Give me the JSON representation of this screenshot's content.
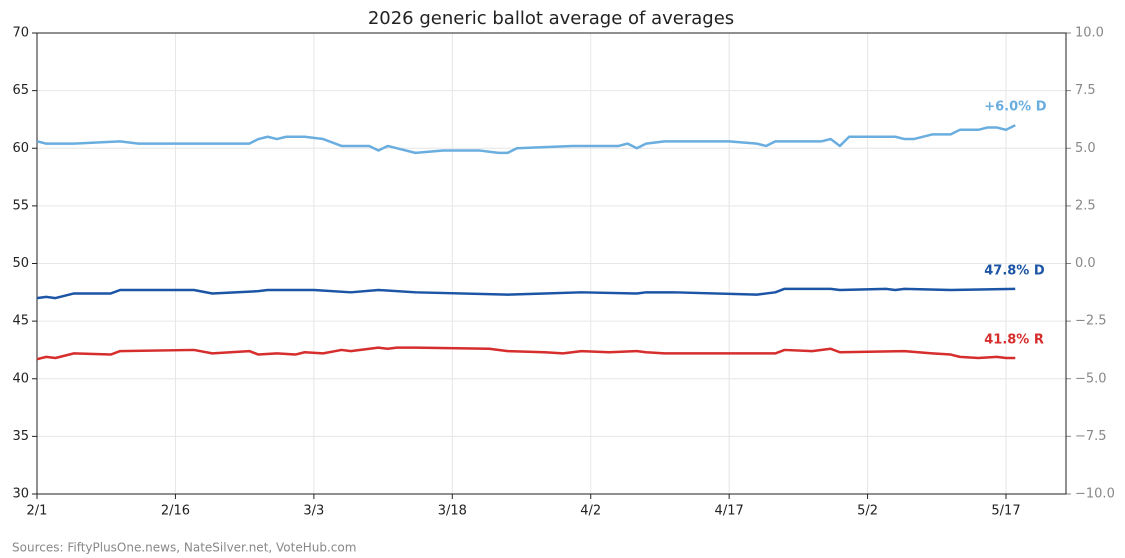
{
  "chart_data": {
    "type": "line",
    "title": "2026 generic ballot average of averages",
    "source": "Sources: FiftyPlusOne.news, NateSilver.net, VoteHub.com",
    "grid": true,
    "xlim": [
      0,
      111.5
    ],
    "xticks": [
      {
        "value": 0,
        "label": "2/1"
      },
      {
        "value": 15,
        "label": "2/16"
      },
      {
        "value": 30,
        "label": "3/3"
      },
      {
        "value": 45,
        "label": "3/18"
      },
      {
        "value": 60,
        "label": "4/2"
      },
      {
        "value": 75,
        "label": "4/17"
      },
      {
        "value": 90,
        "label": "5/2"
      },
      {
        "value": 105,
        "label": "5/17"
      }
    ],
    "ylim": [
      30,
      70
    ],
    "yticks": [
      30,
      35,
      40,
      45,
      50,
      55,
      60,
      65,
      70
    ],
    "y2lim": [
      -10,
      10
    ],
    "y2ticks": [
      {
        "value": -10,
        "label": "−10.0"
      },
      {
        "value": -7.5,
        "label": "−7.5"
      },
      {
        "value": -5,
        "label": "−5.0"
      },
      {
        "value": -2.5,
        "label": "−2.5"
      },
      {
        "value": 0,
        "label": "0.0"
      },
      {
        "value": 2.5,
        "label": "2.5"
      },
      {
        "value": 5,
        "label": "5.0"
      },
      {
        "value": 7.5,
        "label": "7.5"
      },
      {
        "value": 10,
        "label": "10.0"
      }
    ],
    "series": [
      {
        "color": "#6aaee0",
        "axis": "y2",
        "label": "+6.0% D",
        "x": [
          0,
          1,
          4,
          9,
          11,
          23,
          24,
          25,
          26,
          27,
          29,
          31,
          33,
          36,
          37,
          38,
          41,
          44,
          48,
          50,
          51,
          52,
          58,
          63,
          64,
          65,
          66,
          68,
          75,
          78,
          79,
          80,
          85,
          86,
          87,
          88,
          93,
          94,
          95,
          97,
          99,
          100,
          102,
          103,
          104,
          105,
          106
        ],
        "values": [
          5.3,
          5.2,
          5.2,
          5.3,
          5.2,
          5.2,
          5.4,
          5.5,
          5.4,
          5.5,
          5.5,
          5.4,
          5.1,
          5.1,
          4.9,
          5.1,
          4.8,
          4.9,
          4.9,
          4.8,
          4.8,
          5.0,
          5.1,
          5.1,
          5.2,
          5.0,
          5.2,
          5.3,
          5.3,
          5.2,
          5.1,
          5.3,
          5.3,
          5.4,
          5.1,
          5.5,
          5.5,
          5.4,
          5.4,
          5.6,
          5.6,
          5.8,
          5.8,
          5.9,
          5.9,
          5.8,
          6.0
        ]
      },
      {
        "color": "#1c55a5",
        "label": "47.8% D",
        "x": [
          0,
          1,
          2,
          4,
          8,
          9,
          17,
          19,
          24,
          25,
          30,
          34,
          37,
          41,
          51,
          55,
          59,
          65,
          66,
          69,
          78,
          80,
          81,
          86,
          87,
          92,
          93,
          94,
          99,
          106
        ],
        "values": [
          47.0,
          47.1,
          47.0,
          47.4,
          47.4,
          47.7,
          47.7,
          47.4,
          47.6,
          47.7,
          47.7,
          47.5,
          47.7,
          47.5,
          47.3,
          47.4,
          47.5,
          47.4,
          47.5,
          47.5,
          47.3,
          47.5,
          47.8,
          47.8,
          47.7,
          47.8,
          47.7,
          47.8,
          47.7,
          47.8
        ]
      },
      {
        "color": "#d62d2d",
        "label": "41.8% R",
        "x": [
          0,
          1,
          2,
          4,
          8,
          9,
          17,
          19,
          23,
          24,
          26,
          28,
          29,
          31,
          33,
          34,
          37,
          38,
          39,
          41,
          49,
          51,
          55,
          57,
          59,
          62,
          65,
          66,
          68,
          80,
          81,
          84,
          86,
          87,
          94,
          97,
          99,
          100,
          102,
          104,
          105,
          106
        ],
        "values": [
          41.7,
          41.9,
          41.8,
          42.2,
          42.1,
          42.4,
          42.5,
          42.2,
          42.4,
          42.1,
          42.2,
          42.1,
          42.3,
          42.2,
          42.5,
          42.4,
          42.7,
          42.6,
          42.7,
          42.7,
          42.6,
          42.4,
          42.3,
          42.2,
          42.4,
          42.3,
          42.4,
          42.3,
          42.2,
          42.2,
          42.5,
          42.4,
          42.6,
          42.3,
          42.4,
          42.2,
          42.1,
          41.9,
          41.8,
          41.9,
          41.8,
          41.8
        ]
      }
    ]
  }
}
